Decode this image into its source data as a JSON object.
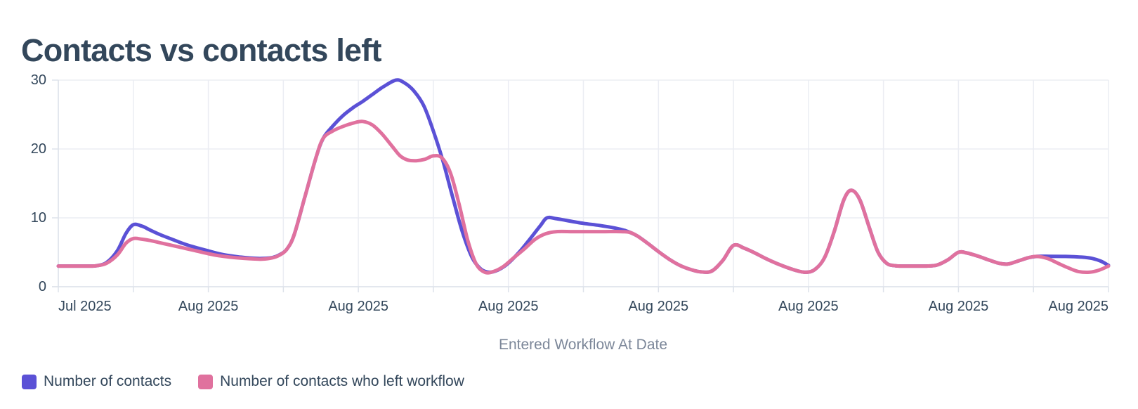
{
  "title": "Contacts vs contacts left",
  "colors": {
    "series_blue": "#5b51d6",
    "series_pink": "#e0719e",
    "title_text": "#33475b",
    "axis_label_text": "#33475b",
    "axis_title_text": "#7c8799",
    "gridline": "#ebedf3",
    "axis_line": "#dde2ea"
  },
  "chart_data": {
    "type": "line",
    "title": "Contacts vs contacts left",
    "xlabel": "Entered Workflow At Date",
    "ylabel": "",
    "ylim": [
      0,
      30
    ],
    "x_domain_days": [
      0,
      98
    ],
    "gridline_interval_days": 7,
    "grid": "on",
    "legend_position": "bottom-left",
    "y_ticks": [
      {
        "label": "0",
        "value": 0
      },
      {
        "label": "10",
        "value": 10
      },
      {
        "label": "20",
        "value": 20
      },
      {
        "label": "30",
        "value": 30
      }
    ],
    "x_ticks": [
      {
        "label": "Jul 2025",
        "day": 0,
        "align": "start"
      },
      {
        "label": "Aug 2025",
        "day": 14,
        "align": "center"
      },
      {
        "label": "Aug 2025",
        "day": 28,
        "align": "center"
      },
      {
        "label": "Aug 2025",
        "day": 42,
        "align": "center"
      },
      {
        "label": "Aug 2025",
        "day": 56,
        "align": "center"
      },
      {
        "label": "Aug 2025",
        "day": 70,
        "align": "center"
      },
      {
        "label": "Aug 2025",
        "day": 84,
        "align": "center"
      },
      {
        "label": "Aug 2025",
        "day": 98,
        "align": "end"
      }
    ],
    "series": [
      {
        "name": "Number of contacts",
        "color": "#5b51d6",
        "points": [
          [
            0,
            3
          ],
          [
            1,
            3
          ],
          [
            2,
            3
          ],
          [
            3,
            3
          ],
          [
            3.6,
            3.05
          ],
          [
            4.5,
            3.5
          ],
          [
            5.5,
            5.2
          ],
          [
            6.3,
            7.7
          ],
          [
            7,
            9
          ],
          [
            7.8,
            8.8
          ],
          [
            8.6,
            8.2
          ],
          [
            9.6,
            7.5
          ],
          [
            10.6,
            6.9
          ],
          [
            11.6,
            6.3
          ],
          [
            12.6,
            5.8
          ],
          [
            14,
            5.2
          ],
          [
            15,
            4.8
          ],
          [
            16,
            4.5
          ],
          [
            17,
            4.3
          ],
          [
            18,
            4.15
          ],
          [
            19,
            4.1
          ],
          [
            20,
            4.25
          ],
          [
            20.6,
            4.6
          ],
          [
            21.3,
            5.4
          ],
          [
            22,
            7.5
          ],
          [
            23,
            13
          ],
          [
            24,
            18.5
          ],
          [
            24.7,
            21.5
          ],
          [
            25.6,
            23.3
          ],
          [
            26.6,
            24.9
          ],
          [
            27.6,
            26.1
          ],
          [
            28.4,
            26.9
          ],
          [
            29.3,
            27.9
          ],
          [
            30.3,
            29
          ],
          [
            31.5,
            30
          ],
          [
            32.3,
            29.6
          ],
          [
            33.2,
            28.4
          ],
          [
            34.1,
            26.3
          ],
          [
            35,
            22.6
          ],
          [
            35.9,
            18.2
          ],
          [
            36.8,
            13
          ],
          [
            37.7,
            8
          ],
          [
            38.6,
            4.3
          ],
          [
            39.4,
            2.6
          ],
          [
            40.2,
            2.1
          ],
          [
            41,
            2.4
          ],
          [
            41.9,
            3.3
          ],
          [
            43,
            5
          ],
          [
            44,
            6.9
          ],
          [
            45,
            8.9
          ],
          [
            45.6,
            10
          ],
          [
            46.4,
            9.9
          ],
          [
            47.5,
            9.6
          ],
          [
            49,
            9.2
          ],
          [
            50.5,
            8.9
          ],
          [
            52,
            8.5
          ],
          [
            53,
            8.1
          ],
          [
            54,
            7.4
          ],
          [
            55,
            6.3
          ],
          [
            56,
            5.1
          ],
          [
            57,
            4
          ],
          [
            58,
            3.1
          ],
          [
            59,
            2.5
          ],
          [
            60,
            2.15
          ],
          [
            61,
            2.3
          ],
          [
            62,
            3.8
          ],
          [
            63,
            6
          ],
          [
            64,
            5.6
          ],
          [
            65,
            4.9
          ],
          [
            66,
            4.1
          ],
          [
            67,
            3.4
          ],
          [
            68,
            2.8
          ],
          [
            69,
            2.3
          ],
          [
            69.8,
            2.1
          ],
          [
            70.6,
            2.5
          ],
          [
            71.5,
            4.2
          ],
          [
            72.4,
            8
          ],
          [
            73.3,
            12.6
          ],
          [
            74,
            14
          ],
          [
            74.8,
            12.6
          ],
          [
            75.7,
            8.5
          ],
          [
            76.5,
            5
          ],
          [
            77.3,
            3.4
          ],
          [
            78.1,
            3.05
          ],
          [
            79,
            3
          ],
          [
            80,
            3
          ],
          [
            81,
            3
          ],
          [
            82,
            3.15
          ],
          [
            83,
            3.9
          ],
          [
            84,
            5
          ],
          [
            84.8,
            4.9
          ],
          [
            85.8,
            4.45
          ],
          [
            86.8,
            3.9
          ],
          [
            87.8,
            3.4
          ],
          [
            88.6,
            3.3
          ],
          [
            89.5,
            3.7
          ],
          [
            90.5,
            4.2
          ],
          [
            91.3,
            4.4
          ],
          [
            92.5,
            4.42
          ],
          [
            94,
            4.4
          ],
          [
            95.5,
            4.3
          ],
          [
            96.5,
            4.1
          ],
          [
            97.3,
            3.7
          ],
          [
            98,
            3.1
          ]
        ]
      },
      {
        "name": "Number of contacts who left workflow",
        "color": "#e0719e",
        "points": [
          [
            0,
            3
          ],
          [
            1,
            3
          ],
          [
            2,
            3
          ],
          [
            3,
            3
          ],
          [
            3.6,
            3.05
          ],
          [
            4.5,
            3.4
          ],
          [
            5.5,
            4.6
          ],
          [
            6.3,
            6.3
          ],
          [
            7,
            7
          ],
          [
            7.8,
            6.9
          ],
          [
            8.6,
            6.7
          ],
          [
            9.6,
            6.35
          ],
          [
            10.6,
            6
          ],
          [
            11.6,
            5.65
          ],
          [
            12.6,
            5.3
          ],
          [
            14,
            4.8
          ],
          [
            15,
            4.5
          ],
          [
            16,
            4.3
          ],
          [
            17,
            4.15
          ],
          [
            18,
            4.05
          ],
          [
            19,
            4
          ],
          [
            20,
            4.2
          ],
          [
            20.6,
            4.55
          ],
          [
            21.3,
            5.4
          ],
          [
            22,
            7.5
          ],
          [
            23,
            13
          ],
          [
            24,
            18.5
          ],
          [
            24.7,
            21.5
          ],
          [
            25.6,
            22.6
          ],
          [
            26.6,
            23.3
          ],
          [
            27.6,
            23.8
          ],
          [
            28.4,
            24
          ],
          [
            29.3,
            23.5
          ],
          [
            30.2,
            22.2
          ],
          [
            31.1,
            20.5
          ],
          [
            31.9,
            19
          ],
          [
            32.6,
            18.4
          ],
          [
            33.4,
            18.3
          ],
          [
            34.2,
            18.5
          ],
          [
            35,
            19
          ],
          [
            35.8,
            18.7
          ],
          [
            36.6,
            16.5
          ],
          [
            37.4,
            12
          ],
          [
            38.2,
            6.8
          ],
          [
            39,
            3.3
          ],
          [
            39.8,
            2.1
          ],
          [
            40.6,
            2.2
          ],
          [
            41.5,
            2.9
          ],
          [
            42.5,
            4.2
          ],
          [
            43.5,
            5.5
          ],
          [
            44.5,
            6.9
          ],
          [
            45.5,
            7.7
          ],
          [
            46.5,
            8
          ],
          [
            48,
            8
          ],
          [
            49.5,
            8
          ],
          [
            51,
            8
          ],
          [
            52.5,
            8
          ],
          [
            53.3,
            7.9
          ],
          [
            54,
            7.4
          ],
          [
            55,
            6.3
          ],
          [
            56,
            5.1
          ],
          [
            57,
            4
          ],
          [
            58,
            3.1
          ],
          [
            59,
            2.5
          ],
          [
            60,
            2.15
          ],
          [
            61,
            2.3
          ],
          [
            62,
            3.8
          ],
          [
            63,
            6
          ],
          [
            64,
            5.6
          ],
          [
            65,
            4.9
          ],
          [
            66,
            4.1
          ],
          [
            67,
            3.4
          ],
          [
            68,
            2.8
          ],
          [
            69,
            2.3
          ],
          [
            69.8,
            2.1
          ],
          [
            70.6,
            2.5
          ],
          [
            71.5,
            4.2
          ],
          [
            72.4,
            8
          ],
          [
            73.3,
            12.6
          ],
          [
            74,
            14
          ],
          [
            74.8,
            12.6
          ],
          [
            75.7,
            8.5
          ],
          [
            76.5,
            5
          ],
          [
            77.3,
            3.4
          ],
          [
            78.1,
            3.05
          ],
          [
            79,
            3
          ],
          [
            80,
            3
          ],
          [
            81,
            3
          ],
          [
            82,
            3.15
          ],
          [
            83,
            3.9
          ],
          [
            84,
            5
          ],
          [
            84.8,
            4.9
          ],
          [
            85.8,
            4.45
          ],
          [
            86.8,
            3.9
          ],
          [
            87.8,
            3.4
          ],
          [
            88.6,
            3.3
          ],
          [
            89.5,
            3.7
          ],
          [
            90.5,
            4.2
          ],
          [
            91.3,
            4.4
          ],
          [
            92.3,
            4.1
          ],
          [
            93.3,
            3.4
          ],
          [
            94.3,
            2.7
          ],
          [
            95.2,
            2.2
          ],
          [
            96.2,
            2.1
          ],
          [
            97.1,
            2.4
          ],
          [
            98,
            3
          ]
        ]
      }
    ]
  },
  "legend": {
    "items": [
      {
        "label": "Number of contacts"
      },
      {
        "label": "Number of contacts who left workflow"
      }
    ]
  }
}
